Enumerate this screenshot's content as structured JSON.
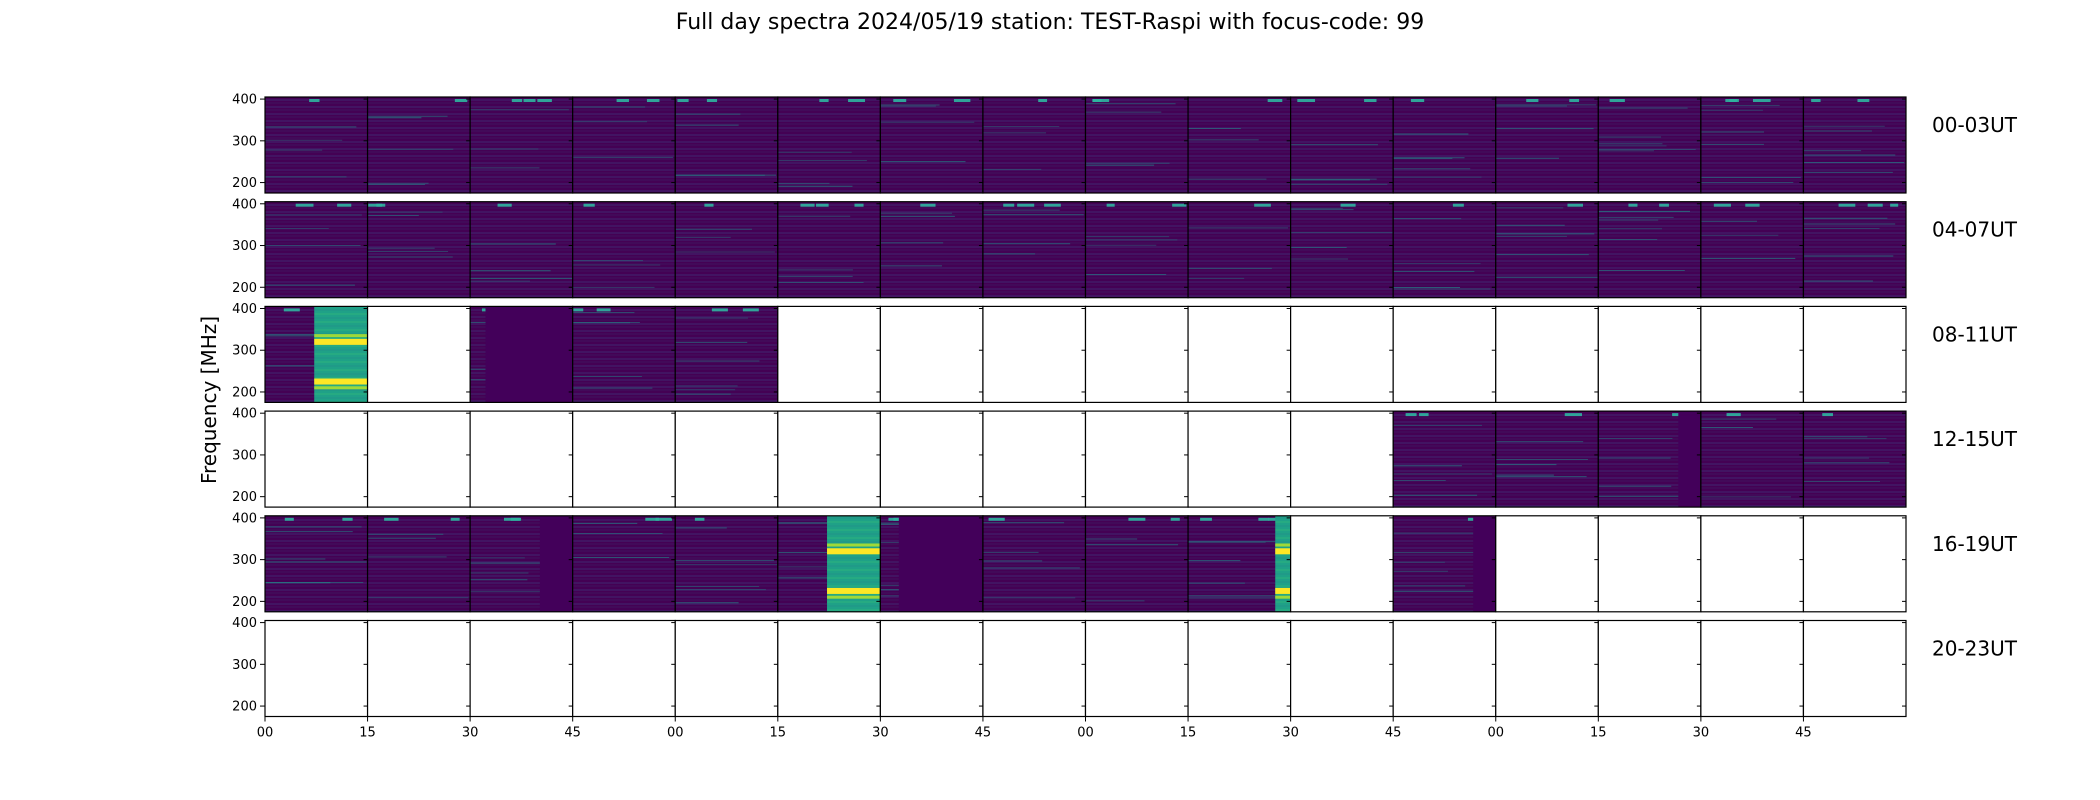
{
  "chart_data": {
    "type": "heatmap",
    "title": "Full day spectra 2024/05/19 station: TEST-Raspi with focus-code: 99",
    "ylabel": "Frequency [MHz]",
    "xlabel": "",
    "yticks": [
      200,
      300,
      400
    ],
    "ylim": [
      175,
      405
    ],
    "xticks": [
      "00",
      "15",
      "30",
      "45",
      "00",
      "15",
      "30",
      "45",
      "00",
      "15",
      "30",
      "45",
      "00",
      "15",
      "30",
      "45"
    ],
    "colormap": "viridis",
    "colors": {
      "background": "#440154",
      "empty": "#ffffff",
      "dark": "#3b0f52",
      "hot": "#fde725",
      "mid": "#35b779",
      "teal": "#21918c"
    },
    "rows": [
      {
        "label": "00-03UT",
        "panels": [
          {
            "fill": 1.0
          },
          {
            "fill": 1.0
          },
          {
            "fill": 1.0
          },
          {
            "fill": 1.0
          },
          {
            "fill": 1.0
          },
          {
            "fill": 1.0
          },
          {
            "fill": 1.0
          },
          {
            "fill": 1.0
          },
          {
            "fill": 1.0
          },
          {
            "fill": 1.0
          },
          {
            "fill": 1.0
          },
          {
            "fill": 1.0
          },
          {
            "fill": 1.0
          },
          {
            "fill": 1.0
          },
          {
            "fill": 1.0
          },
          {
            "fill": 1.0
          }
        ]
      },
      {
        "label": "04-07UT",
        "panels": [
          {
            "fill": 1.0
          },
          {
            "fill": 1.0
          },
          {
            "fill": 1.0
          },
          {
            "fill": 1.0
          },
          {
            "fill": 1.0
          },
          {
            "fill": 1.0
          },
          {
            "fill": 1.0
          },
          {
            "fill": 1.0
          },
          {
            "fill": 1.0
          },
          {
            "fill": 1.0
          },
          {
            "fill": 1.0
          },
          {
            "fill": 1.0
          },
          {
            "fill": 1.0
          },
          {
            "fill": 1.0
          },
          {
            "fill": 1.0
          },
          {
            "fill": 1.0
          }
        ]
      },
      {
        "label": "08-11UT",
        "panels": [
          {
            "fill": 1.0,
            "burst": [
              0.48,
              1.0
            ]
          },
          {
            "fill": 0.0
          },
          {
            "fill": 1.0,
            "dark": [
              0.15,
              1.0
            ]
          },
          {
            "fill": 1.0
          },
          {
            "fill": 1.0
          },
          {
            "fill": 0.0
          },
          {
            "fill": 0.0
          },
          {
            "fill": 0.0
          },
          {
            "fill": 0.0
          },
          {
            "fill": 0.0
          },
          {
            "fill": 0.0
          },
          {
            "fill": 0.0
          },
          {
            "fill": 0.0
          },
          {
            "fill": 0.0
          },
          {
            "fill": 0.0
          },
          {
            "fill": 0.0
          }
        ]
      },
      {
        "label": "12-15UT",
        "panels": [
          {
            "fill": 0.0
          },
          {
            "fill": 0.0
          },
          {
            "fill": 0.0
          },
          {
            "fill": 0.0
          },
          {
            "fill": 0.0
          },
          {
            "fill": 0.0
          },
          {
            "fill": 0.0
          },
          {
            "fill": 0.0
          },
          {
            "fill": 0.0
          },
          {
            "fill": 0.0
          },
          {
            "fill": 0.0
          },
          {
            "fill": 1.0
          },
          {
            "fill": 1.0
          },
          {
            "fill": 1.0,
            "dark": [
              0.78,
              1.0
            ]
          },
          {
            "fill": 1.0
          },
          {
            "fill": 1.0
          }
        ]
      },
      {
        "label": "16-19UT",
        "panels": [
          {
            "fill": 1.0
          },
          {
            "fill": 1.0
          },
          {
            "fill": 1.0,
            "dark": [
              0.68,
              1.0
            ]
          },
          {
            "fill": 1.0
          },
          {
            "fill": 1.0
          },
          {
            "fill": 1.0,
            "burst": [
              0.48,
              1.0
            ]
          },
          {
            "fill": 1.0,
            "dark": [
              0.18,
              1.0
            ]
          },
          {
            "fill": 1.0
          },
          {
            "fill": 1.0
          },
          {
            "fill": 1.0,
            "burst": [
              0.85,
              1.0
            ]
          },
          {
            "fill": 0.0
          },
          {
            "fill": 1.0,
            "dark": [
              0.78,
              1.0
            ]
          },
          {
            "fill": 0.0
          },
          {
            "fill": 0.0
          },
          {
            "fill": 0.0
          },
          {
            "fill": 0.0
          }
        ]
      },
      {
        "label": "20-23UT",
        "panels": [
          {
            "fill": 0.0
          },
          {
            "fill": 0.0
          },
          {
            "fill": 0.0
          },
          {
            "fill": 0.0
          },
          {
            "fill": 0.0
          },
          {
            "fill": 0.0
          },
          {
            "fill": 0.0
          },
          {
            "fill": 0.0
          },
          {
            "fill": 0.0
          },
          {
            "fill": 0.0
          },
          {
            "fill": 0.0
          },
          {
            "fill": 0.0
          },
          {
            "fill": 0.0
          },
          {
            "fill": 0.0
          },
          {
            "fill": 0.0
          },
          {
            "fill": 0.0
          }
        ]
      }
    ]
  }
}
